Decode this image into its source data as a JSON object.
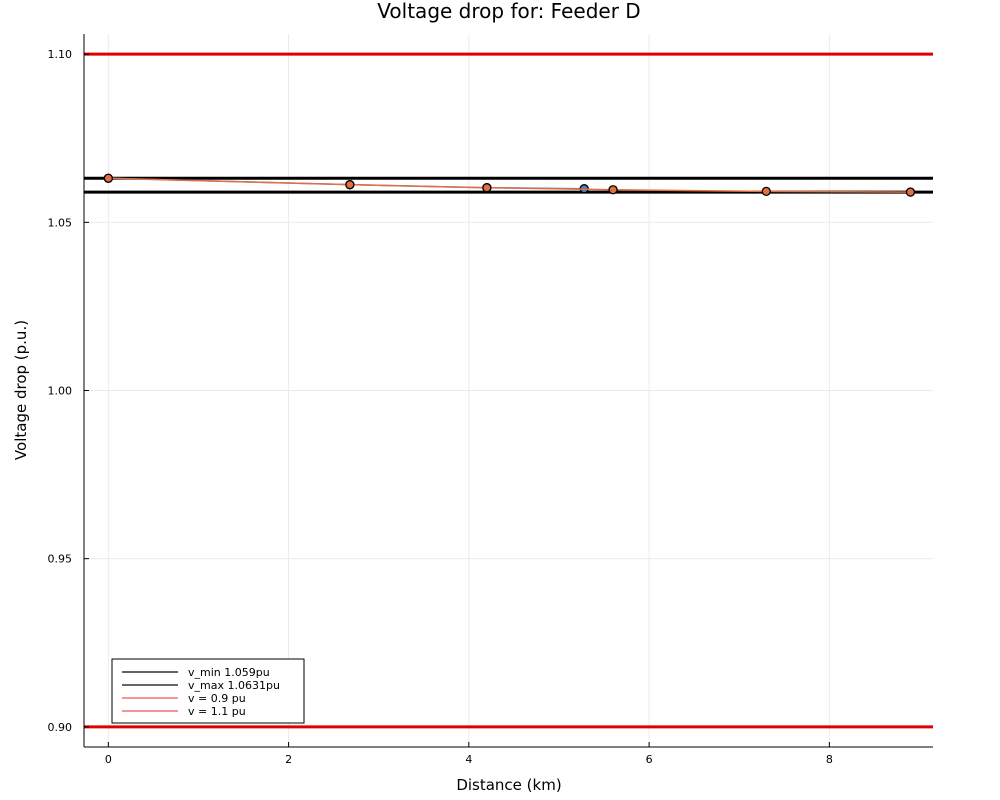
{
  "chart_data": {
    "type": "line",
    "title": "Voltage drop for: Feeder D",
    "xlabel": "Distance (km)",
    "ylabel": "Voltage drop (p.u.)",
    "xlim": [
      -0.27,
      9.15
    ],
    "ylim": [
      0.894,
      1.106
    ],
    "x_ticks": [
      0,
      2,
      4,
      6,
      8
    ],
    "x_tick_labels": [
      "0",
      "2",
      "4",
      "6",
      "8"
    ],
    "y_ticks": [
      0.9,
      0.95,
      1.0,
      1.05,
      1.1
    ],
    "y_tick_labels": [
      "0.90",
      "0.95",
      "1.00",
      "1.05",
      "1.10"
    ],
    "grid": true,
    "legend_position": "bottom-left",
    "reference_lines": [
      {
        "name": "v_min 1.059pu",
        "y": 1.059,
        "color": "#000000"
      },
      {
        "name": "v_max 1.0631pu",
        "y": 1.0631,
        "color": "#000000"
      },
      {
        "name": "v = 0.9 pu",
        "y": 0.9,
        "color": "#e00000"
      },
      {
        "name": "v = 1.1 pu",
        "y": 1.1,
        "color": "#e00000"
      }
    ],
    "series": [
      {
        "color": "#4a7fc1",
        "x": [
          0,
          2.68,
          4.2,
          5.28
        ],
        "y": [
          1.0631,
          1.0612,
          1.0603,
          1.06
        ]
      },
      {
        "color": "#e07040",
        "x": [
          0,
          2.68,
          4.2,
          5.6,
          7.3,
          8.9
        ],
        "y": [
          1.0631,
          1.0612,
          1.0603,
          1.0597,
          1.0592,
          1.059
        ]
      }
    ]
  }
}
